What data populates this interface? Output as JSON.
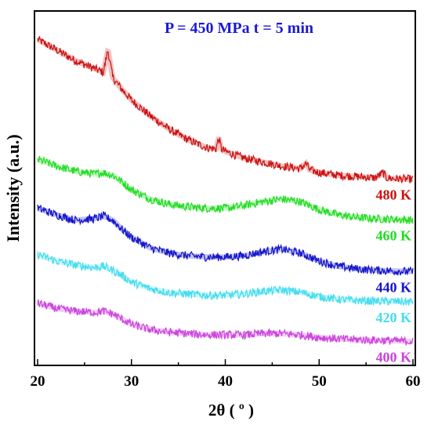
{
  "chart_data": {
    "type": "line",
    "title": "P = 450 MPa   t = 5 min",
    "xlabel": "2θ ( º )",
    "ylabel": "Intensity   (a.u.)",
    "xlim": [
      20,
      60
    ],
    "xticks": [
      20,
      30,
      40,
      50,
      60
    ],
    "y_ticks_shown": false,
    "grid": false,
    "legend": "labels at right end of each curve",
    "series": [
      {
        "name": "480 K",
        "color": "#cc1111",
        "x": [
          20,
          22,
          24,
          26,
          27,
          27.5,
          28,
          29,
          30,
          32,
          34,
          36,
          38,
          39,
          39.3,
          39.6,
          40,
          42,
          44,
          46,
          48,
          48.6,
          49,
          50,
          52,
          54,
          56,
          56.8,
          57.2,
          58,
          60
        ],
        "y": [
          10.0,
          9.6,
          9.2,
          8.9,
          8.75,
          9.6,
          8.55,
          8.1,
          7.7,
          7.1,
          6.6,
          6.2,
          5.9,
          5.85,
          6.25,
          5.85,
          5.75,
          5.5,
          5.35,
          5.2,
          5.1,
          5.3,
          5.05,
          4.95,
          4.85,
          4.8,
          4.75,
          4.95,
          4.75,
          4.72,
          4.7
        ]
      },
      {
        "name": "460 K",
        "color": "#22dd22",
        "x": [
          20,
          22,
          24,
          26,
          27,
          28,
          29,
          30,
          32,
          34,
          36,
          38,
          40,
          42,
          44,
          46,
          48,
          50,
          52,
          54,
          56,
          58,
          60
        ],
        "y": [
          5.45,
          5.2,
          5.0,
          4.9,
          4.95,
          4.85,
          4.6,
          4.3,
          3.95,
          3.75,
          3.65,
          3.6,
          3.6,
          3.7,
          3.85,
          3.95,
          3.85,
          3.55,
          3.35,
          3.25,
          3.2,
          3.18,
          3.15
        ]
      },
      {
        "name": "440 K",
        "color": "#1414cc",
        "x": [
          20,
          22,
          24,
          26,
          27,
          28,
          29,
          30,
          32,
          34,
          36,
          38,
          40,
          42,
          44,
          46,
          48,
          50,
          52,
          54,
          56,
          58,
          60
        ],
        "y": [
          3.6,
          3.35,
          3.15,
          3.2,
          3.3,
          3.15,
          2.8,
          2.5,
          2.1,
          1.9,
          1.8,
          1.75,
          1.75,
          1.8,
          1.95,
          2.05,
          1.9,
          1.6,
          1.4,
          1.3,
          1.25,
          1.22,
          1.2
        ]
      },
      {
        "name": "420 K",
        "color": "#44ddee",
        "x": [
          20,
          22,
          24,
          26,
          27,
          28,
          29,
          30,
          32,
          34,
          36,
          38,
          40,
          42,
          44,
          46,
          48,
          50,
          52,
          54,
          56,
          58,
          60
        ],
        "y": [
          1.85,
          1.6,
          1.45,
          1.35,
          1.4,
          1.25,
          1.05,
          0.8,
          0.55,
          0.4,
          0.35,
          0.3,
          0.3,
          0.35,
          0.45,
          0.5,
          0.42,
          0.25,
          0.15,
          0.1,
          0.08,
          0.07,
          0.05
        ]
      },
      {
        "name": "400 K",
        "color": "#cc44dd",
        "x": [
          20,
          22,
          24,
          26,
          27,
          28,
          29,
          30,
          32,
          34,
          36,
          38,
          40,
          42,
          44,
          46,
          48,
          50,
          52,
          54,
          56,
          58,
          60
        ],
        "y": [
          0.0,
          -0.2,
          -0.3,
          -0.35,
          -0.3,
          -0.4,
          -0.6,
          -0.8,
          -1.0,
          -1.1,
          -1.15,
          -1.2,
          -1.2,
          -1.2,
          -1.15,
          -1.15,
          -1.2,
          -1.3,
          -1.35,
          -1.38,
          -1.4,
          -1.42,
          -1.45
        ]
      }
    ]
  }
}
